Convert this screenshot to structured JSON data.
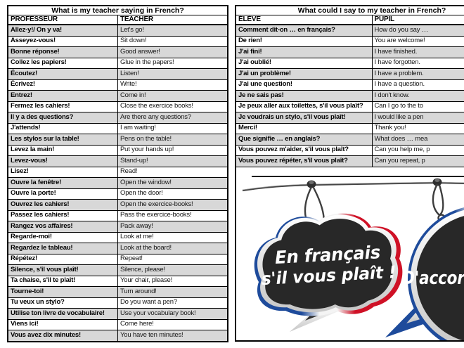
{
  "left_table": {
    "title": "What is my teacher saying in French?",
    "columns": [
      "PROFESSEUR",
      "TEACHER"
    ],
    "rows": [
      [
        "Allez-y!/ On y va!",
        "Let's go!"
      ],
      [
        "Asseyez-vous!",
        "Sit down!"
      ],
      [
        "Bonne réponse!",
        "Good answer!"
      ],
      [
        "Collez les papiers!",
        "Glue in the papers!"
      ],
      [
        "Écoutez!",
        "Listen!"
      ],
      [
        "Écrivez!",
        "Write!"
      ],
      [
        "Entrez!",
        "Come in!"
      ],
      [
        "Fermez les cahiers!",
        "Close the exercice books!"
      ],
      [
        "Il y a des questions?",
        "Are there any questions?"
      ],
      [
        "J'attends!",
        "I am waiting!"
      ],
      [
        "Les stylos sur la table!",
        "Pens on the table!"
      ],
      [
        "Levez la main!",
        "Put your hands up!"
      ],
      [
        "Levez-vous!",
        "Stand-up!"
      ],
      [
        "Lisez!",
        "Read!"
      ],
      [
        "Ouvre la fenêtre!",
        "Open the window!"
      ],
      [
        "Ouvre la porte!",
        "Open the door!"
      ],
      [
        "Ouvrez les cahiers!",
        "Open the exercice-books!"
      ],
      [
        "Passez les cahiers!",
        "Pass the exercice-books!"
      ],
      [
        "Rangez vos affaires!",
        "Pack away!"
      ],
      [
        "Regarde-moi!",
        "Look at me!"
      ],
      [
        "Regardez le tableau!",
        "Look at the board!"
      ],
      [
        "Répétez!",
        "Repeat!"
      ],
      [
        "Silence, s'il vous plaît!",
        "Silence, please!"
      ],
      [
        "Ta chaise, s'il te plaît!",
        "Your chair, please!"
      ],
      [
        "Tourne-toi!",
        "Turn around!"
      ],
      [
        "Tu veux un stylo?",
        "Do you want a pen?"
      ],
      [
        "Utilise ton livre de vocabulaire!",
        "Use your vocabulary book!"
      ],
      [
        "Viens ici!",
        "Come here!"
      ],
      [
        "Vous avez dix minutes!",
        "You have ten minutes!"
      ]
    ]
  },
  "right_table": {
    "title": "What could I say to my teacher in French?",
    "columns": [
      "ÉLÈVE",
      "PUPIL"
    ],
    "rows": [
      [
        "Comment dit-on … en français?",
        "How do you say …"
      ],
      [
        "De rien!",
        "You are welcome!"
      ],
      [
        "J'ai fini!",
        "I have finished."
      ],
      [
        "J'ai oublié!",
        "I have forgotten."
      ],
      [
        "J'ai un problème!",
        "I have a problem."
      ],
      [
        "J'ai une question!",
        "I have a question."
      ],
      [
        "Je ne sais pas!",
        "I don't know."
      ],
      [
        "Je peux aller aux toilettes, s'il vous plaît?",
        "Can I go to the to"
      ],
      [
        "Je voudrais un stylo, s'il vous plaît!",
        "I would like a pen"
      ],
      [
        "Merci!",
        "Thank you!"
      ],
      [
        "Que signifie … en anglais?",
        "What does … mea"
      ],
      [
        "Vous pouvez m'aider, s'il vous plaît?",
        "Can you help me, p"
      ],
      [
        "Vous pouvez répéter, s'il vous plaît?",
        "Can you repeat, p"
      ]
    ]
  },
  "image": {
    "bubble_left_line1": "En français",
    "bubble_left_line2": "s'il vous plaît !",
    "bubble_right_text": "D'accord"
  },
  "colors": {
    "row_shade": "#d8d8d8",
    "border": "#000000",
    "flag_blue": "#1e4b9b",
    "flag_red": "#cf1126",
    "chalkboard": "#282828",
    "silver": "#e9e9e9"
  }
}
